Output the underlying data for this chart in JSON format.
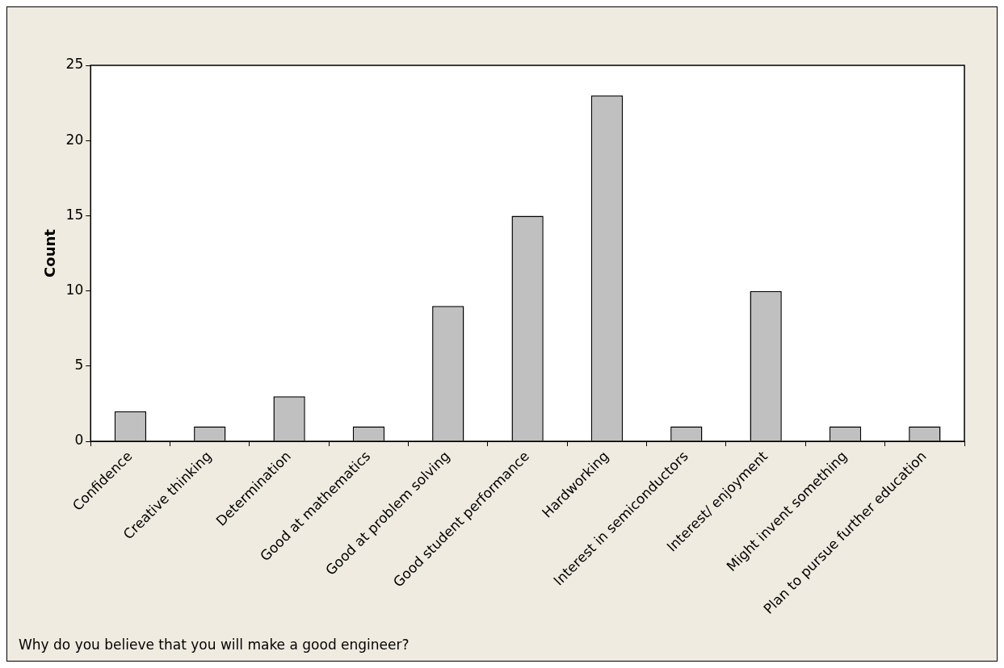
{
  "chart_data": {
    "type": "bar",
    "ylabel": "Count",
    "categories": [
      "Confidence",
      "Creative thinking",
      "Determination",
      "Good at mathematics",
      "Good at problem solving",
      "Good student performance",
      "Hardworking",
      "Interest in semiconductors",
      "Interest/ enjoyment",
      "Might invent something",
      "Plan to pursue further education"
    ],
    "values": [
      2,
      1,
      3,
      1,
      9,
      15,
      23,
      1,
      10,
      1,
      1
    ],
    "color": "#c0c0c0",
    "ylim": [
      0,
      25
    ],
    "yticks": [
      0,
      5,
      10,
      15,
      20,
      25
    ],
    "grid": false,
    "annotations": [
      "Why do you believe that you will make a good engineer?"
    ]
  }
}
